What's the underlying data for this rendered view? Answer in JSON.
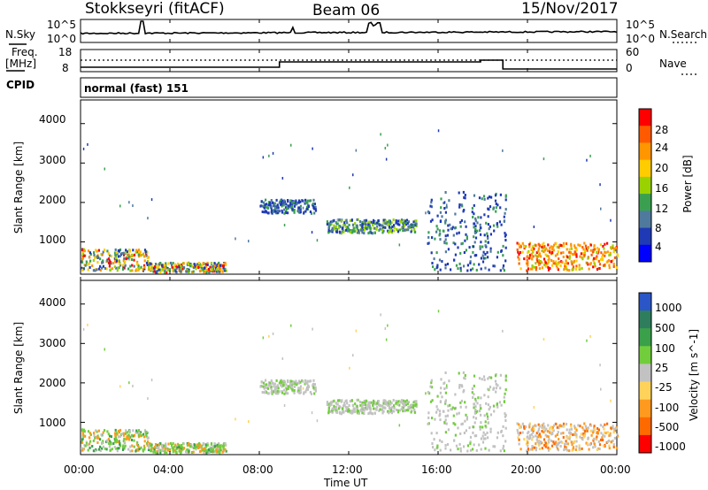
{
  "header": {
    "station": "Stokkseyri (fitACF)",
    "beam": "Beam 06",
    "date": "15/Nov/2017"
  },
  "sky_panel": {
    "left_label": "N.Sky",
    "left_ticks": [
      "10^5",
      "10^0"
    ],
    "right_ticks": [
      "10^5",
      "10^0"
    ],
    "right_label": "N.Search"
  },
  "freq_panel": {
    "left_label_1": "Freq.",
    "left_label_2": "[MHz]",
    "left_ticks": [
      "18",
      "8"
    ],
    "right_ticks": [
      "60",
      "0"
    ],
    "right_label": "Nave"
  },
  "cpid": {
    "label": "CPID",
    "mode": "normal (fast) 151"
  },
  "chart_data": [
    {
      "type": "heatmap",
      "panel": "power",
      "ylabel": "Slant Range [km]",
      "yticks": [
        "4000",
        "3000",
        "2000",
        "1000"
      ],
      "ylim": [
        180,
        4600
      ],
      "xlim_hours": [
        0,
        24
      ],
      "colorbar_label": "Power [dB]",
      "colorbar_ticks": [
        "28",
        "24",
        "20",
        "16",
        "12",
        "8",
        "4"
      ],
      "colorbar_colors": [
        "#ff0000",
        "#ff5a00",
        "#ff9600",
        "#ffcc00",
        "#9ad200",
        "#3aa050",
        "#4f7a9e",
        "#1f3ab4",
        "#0000ff"
      ],
      "scatter_regions": [
        {
          "t": [
            0.0,
            3.0
          ],
          "range": [
            300,
            850
          ],
          "level": "mixed"
        },
        {
          "t": [
            3.0,
            6.5
          ],
          "range": [
            250,
            500
          ],
          "level": "mixed"
        },
        {
          "t": [
            8.0,
            10.5
          ],
          "range": [
            1750,
            2100
          ],
          "level": "low"
        },
        {
          "t": [
            11.0,
            15.0
          ],
          "range": [
            1250,
            1600
          ],
          "level": "low-mid"
        },
        {
          "t": [
            15.5,
            19.0
          ],
          "range": [
            300,
            2300
          ],
          "level": "low"
        },
        {
          "t": [
            19.5,
            24.0
          ],
          "range": [
            300,
            1000
          ],
          "level": "high"
        }
      ]
    },
    {
      "type": "heatmap",
      "panel": "velocity",
      "ylabel": "Slant Range [km]",
      "yticks": [
        "4000",
        "3000",
        "2000",
        "1000"
      ],
      "ylim": [
        180,
        4600
      ],
      "xlim_hours": [
        0,
        24
      ],
      "colorbar_label": "Velocity [m s^-1]",
      "colorbar_ticks": [
        "1000",
        "500",
        "100",
        "25",
        "-25",
        "-100",
        "-500",
        "-1000"
      ],
      "colorbar_colors": [
        "#2a56c8",
        "#2e7e5e",
        "#3aa04a",
        "#72cd3c",
        "#c2c2c2",
        "#ffd35a",
        "#ff9a1e",
        "#ff6a00",
        "#ff0000"
      ],
      "x_ticks": [
        "00:00",
        "04:00",
        "08:00",
        "12:00",
        "16:00",
        "20:00",
        "00:00"
      ],
      "xlabel": "Time UT"
    }
  ]
}
